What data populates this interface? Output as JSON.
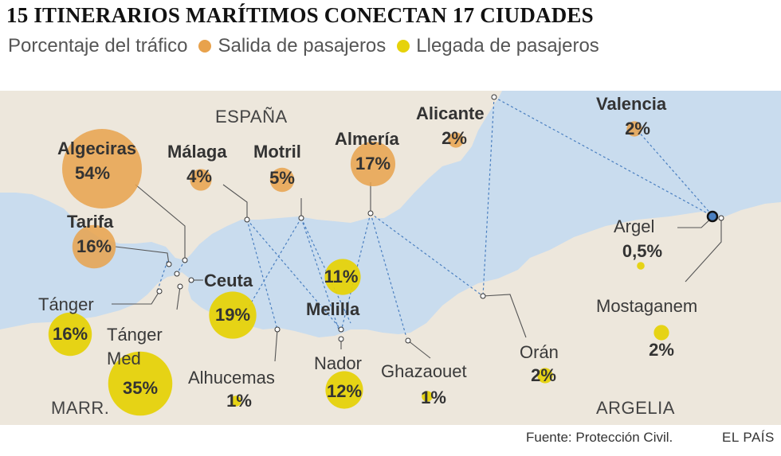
{
  "title": "15 ITINERARIOS MARÍTIMOS CONECTAN 17 CIUDADES",
  "legend": {
    "label": "Porcentaje del tráfico",
    "departure": {
      "label": "Salida de pasajeros",
      "color": "#e8a24c"
    },
    "arrival": {
      "label": "Llegada de pasajeros",
      "color": "#e6d20a"
    }
  },
  "colors": {
    "sea": "#c9dcee",
    "land": "#ede7dc",
    "route": "#4a7fc0"
  },
  "regions": {
    "spain": "ESPAÑA",
    "morocco": "MARR.",
    "algeria": "ARGELIA"
  },
  "cities": {
    "algeciras": {
      "name": "Algeciras",
      "pct": "54%",
      "value": 54,
      "type": "departure"
    },
    "tarifa": {
      "name": "Tarifa",
      "pct": "16%",
      "value": 16,
      "type": "departure"
    },
    "malaga": {
      "name": "Málaga",
      "pct": "4%",
      "value": 4,
      "type": "departure"
    },
    "motril": {
      "name": "Motril",
      "pct": "5%",
      "value": 5,
      "type": "departure"
    },
    "almeria": {
      "name": "Almería",
      "pct": "17%",
      "value": 17,
      "type": "departure"
    },
    "alicante": {
      "name": "Alicante",
      "pct": "2%",
      "value": 2,
      "type": "departure"
    },
    "valencia": {
      "name": "Valencia",
      "pct": "2%",
      "value": 2,
      "type": "departure"
    },
    "melilla": {
      "name": "Melilla",
      "pct": "11%",
      "value": 11,
      "type": "arrival"
    },
    "ceuta": {
      "name": "Ceuta",
      "pct": "19%",
      "value": 19,
      "type": "arrival"
    },
    "tanger": {
      "name": "Tánger",
      "pct": "16%",
      "value": 16,
      "type": "arrival"
    },
    "tanger_med": {
      "name": "Tánger Med",
      "pct": "35%",
      "value": 35,
      "type": "arrival"
    },
    "alhucemas": {
      "name": "Alhucemas",
      "pct": "1%",
      "value": 1,
      "type": "arrival"
    },
    "nador": {
      "name": "Nador",
      "pct": "12%",
      "value": 12,
      "type": "arrival"
    },
    "ghazaouet": {
      "name": "Ghazaouet",
      "pct": "1%",
      "value": 1,
      "type": "arrival"
    },
    "oran": {
      "name": "Orán",
      "pct": "2%",
      "value": 2,
      "type": "arrival"
    },
    "argel": {
      "name": "Argel",
      "pct": "0,5%",
      "value": 0.5,
      "type": "arrival"
    },
    "mostaganem": {
      "name": "Mostaganem",
      "pct": "2%",
      "value": 2,
      "type": "arrival"
    }
  },
  "footer": {
    "source": "Fuente: Protección Civil.",
    "brand": "EL PAÍS"
  }
}
